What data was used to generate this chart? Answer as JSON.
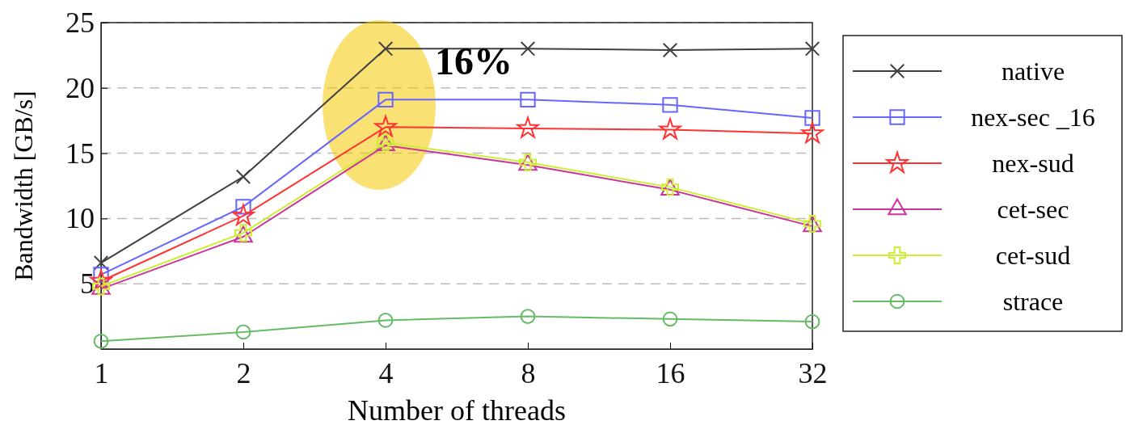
{
  "chart_data": {
    "type": "line",
    "xlabel": "Number of threads",
    "ylabel": "Bandwidth [GB/s]",
    "categories": [
      "1",
      "2",
      "4",
      "8",
      "16",
      "32"
    ],
    "ylim": [
      0,
      25
    ],
    "yticks": [
      5,
      10,
      15,
      20,
      25
    ],
    "grid": "y",
    "legend": "right",
    "annotations": [
      "16%"
    ],
    "series": [
      {
        "name": "native",
        "color": "#404040",
        "marker": "cross",
        "values": [
          6.6,
          13.2,
          23.0,
          23.0,
          22.9,
          23.0
        ]
      },
      {
        "name": "nex-sec _16",
        "color": "#6666ff",
        "marker": "square",
        "values": [
          5.7,
          10.9,
          19.1,
          19.1,
          18.7,
          17.7
        ]
      },
      {
        "name": "nex-sud",
        "color": "#ff3333",
        "marker": "star",
        "values": [
          5.2,
          10.2,
          17.0,
          16.9,
          16.8,
          16.5
        ]
      },
      {
        "name": "cet-sec",
        "color": "#cc3399",
        "marker": "triangle",
        "values": [
          4.6,
          8.6,
          15.6,
          14.1,
          12.2,
          9.4
        ]
      },
      {
        "name": "cet-sud",
        "color": "#ccee33",
        "marker": "plus",
        "values": [
          4.8,
          8.9,
          15.8,
          14.3,
          12.4,
          9.6
        ]
      },
      {
        "name": "strace",
        "color": "#66bb66",
        "marker": "circle",
        "values": [
          0.6,
          1.3,
          2.2,
          2.5,
          2.3,
          2.1
        ]
      }
    ]
  }
}
